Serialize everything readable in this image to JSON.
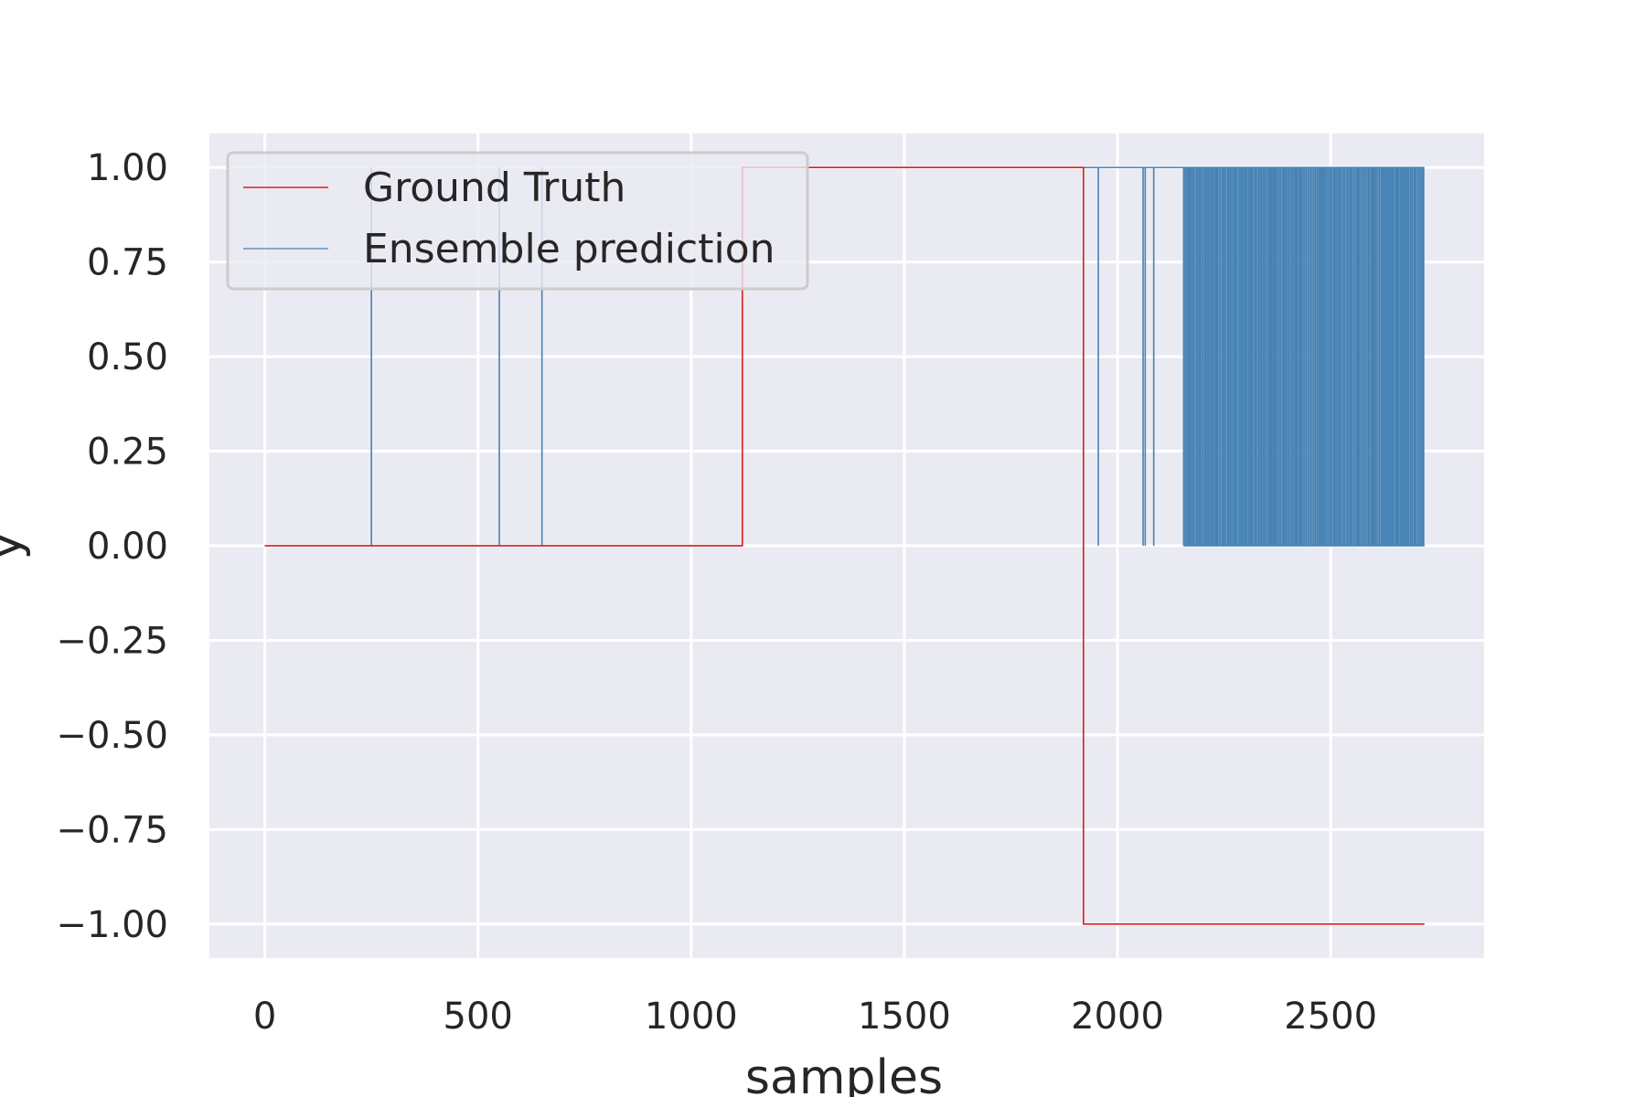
{
  "chart_data": {
    "type": "line",
    "title": "",
    "xlabel": "samples",
    "ylabel": "y",
    "xlim": [
      -130,
      2860
    ],
    "ylim": [
      -1.09,
      1.09
    ],
    "xticks": [
      0,
      500,
      1000,
      1500,
      2000,
      2500
    ],
    "xtick_labels": [
      "0",
      "500",
      "1000",
      "1500",
      "2000",
      "2500"
    ],
    "yticks": [
      1.0,
      0.75,
      0.5,
      0.25,
      0.0,
      -0.25,
      -0.5,
      -0.75,
      -1.0
    ],
    "ytick_labels": [
      "1.00",
      "0.75",
      "0.50",
      "0.25",
      "0.00",
      "−0.25",
      "−0.50",
      "−0.75",
      "−1.00"
    ],
    "grid": true,
    "legend_position": "top-left",
    "background_color": "#eaeaf2",
    "series": [
      {
        "name": "Ground Truth",
        "color": "#e41a1c",
        "step": true,
        "x": [
          0,
          1120,
          1120,
          1920,
          1920,
          2720
        ],
        "y": [
          0,
          0,
          1,
          1,
          -1,
          -1
        ]
      },
      {
        "name": "Ensemble prediction",
        "color": "#4682b4",
        "step": true,
        "baseline": {
          "x_start": 0,
          "x_end": 1120,
          "y": 0
        },
        "high_segment": {
          "x_start": 1120,
          "x_end": 2720,
          "y": 1
        },
        "spikes_up": [
          250,
          550,
          650
        ],
        "spikes_down": [
          1955,
          2060,
          2065,
          2085
        ],
        "dense_oscillation": {
          "x_start": 2155,
          "x_end": 2720,
          "low": 0,
          "high": 1
        }
      }
    ]
  }
}
